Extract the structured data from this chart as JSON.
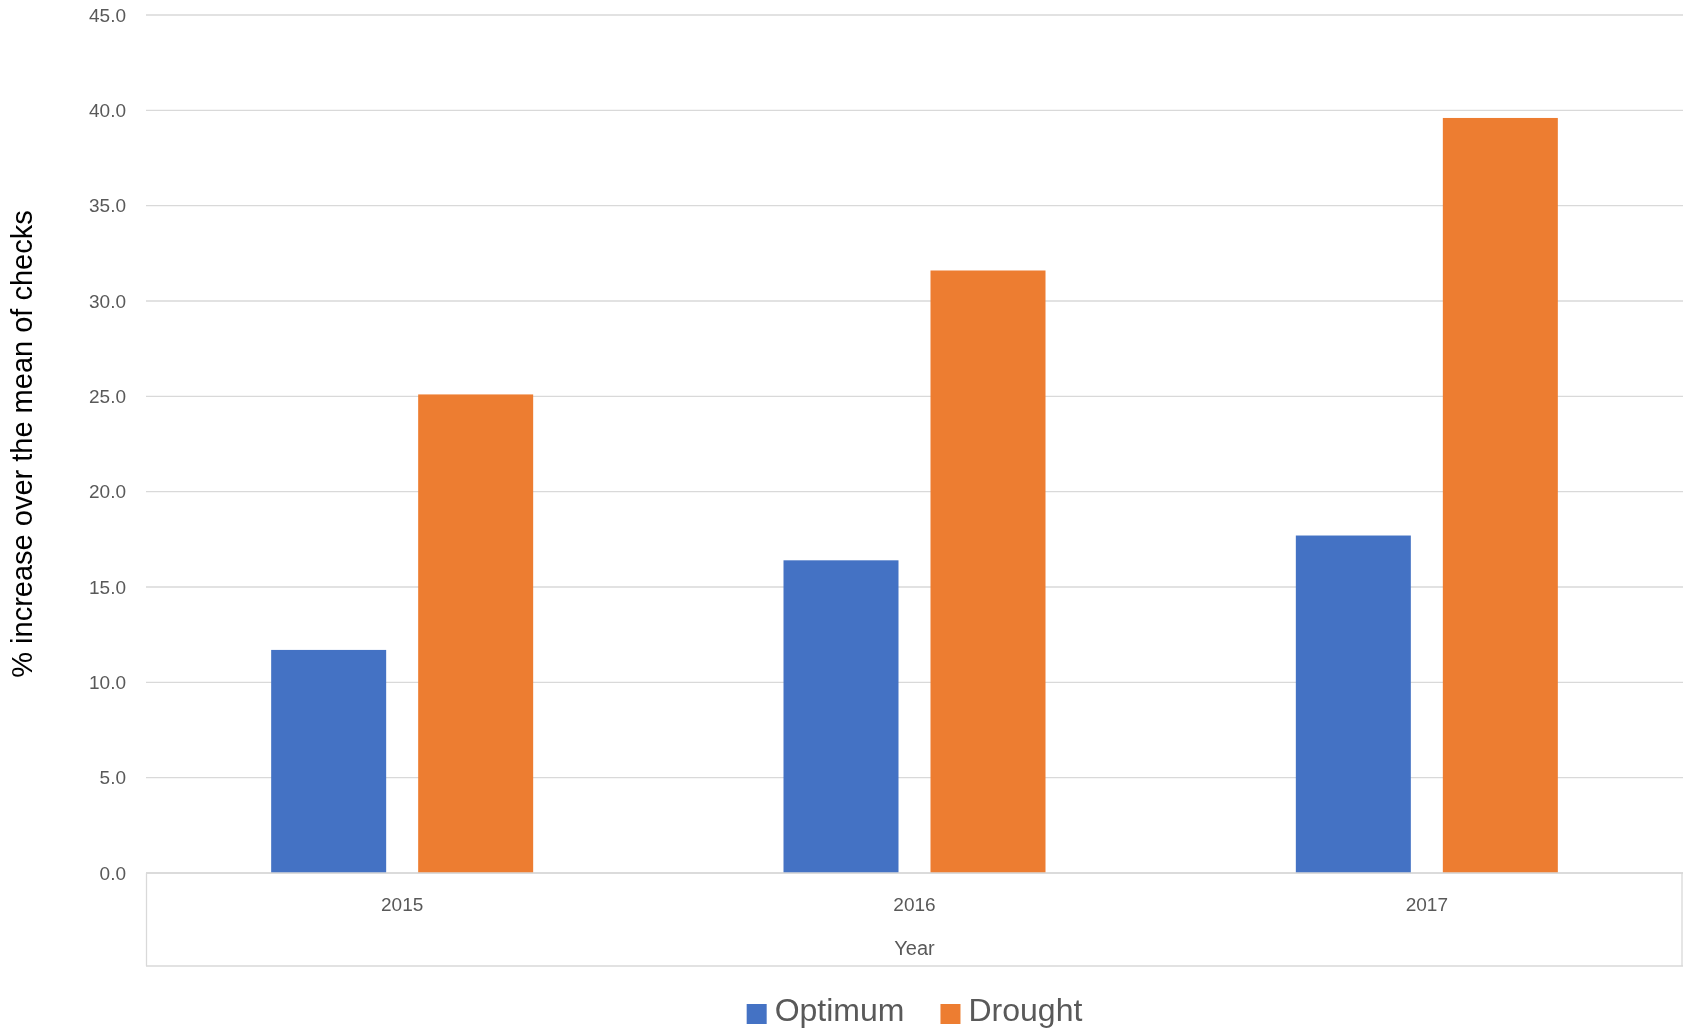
{
  "chart_data": {
    "type": "bar",
    "xlabel": "Year",
    "ylabel": "% increase over the mean of checks",
    "categories": [
      "2015",
      "2016",
      "2017"
    ],
    "series": [
      {
        "name": "Optimum",
        "color": "#4472c4",
        "values": [
          11.7,
          16.4,
          17.7
        ]
      },
      {
        "name": "Drought",
        "color": "#ed7d31",
        "values": [
          25.1,
          31.6,
          39.6
        ]
      }
    ],
    "ylim": [
      0,
      45
    ],
    "yticks": [
      {
        "value": 0,
        "label": "0.0"
      },
      {
        "value": 5,
        "label": "5.0"
      },
      {
        "value": 10,
        "label": "10.0"
      },
      {
        "value": 15,
        "label": "15.0"
      },
      {
        "value": 20,
        "label": "20.0"
      },
      {
        "value": 25,
        "label": "25.0"
      },
      {
        "value": 30,
        "label": "30.0"
      },
      {
        "value": 35,
        "label": "35.0"
      },
      {
        "value": 40,
        "label": "40.0"
      },
      {
        "value": 45,
        "label": "45.0"
      }
    ],
    "grid": "y",
    "legend": "bottom"
  }
}
